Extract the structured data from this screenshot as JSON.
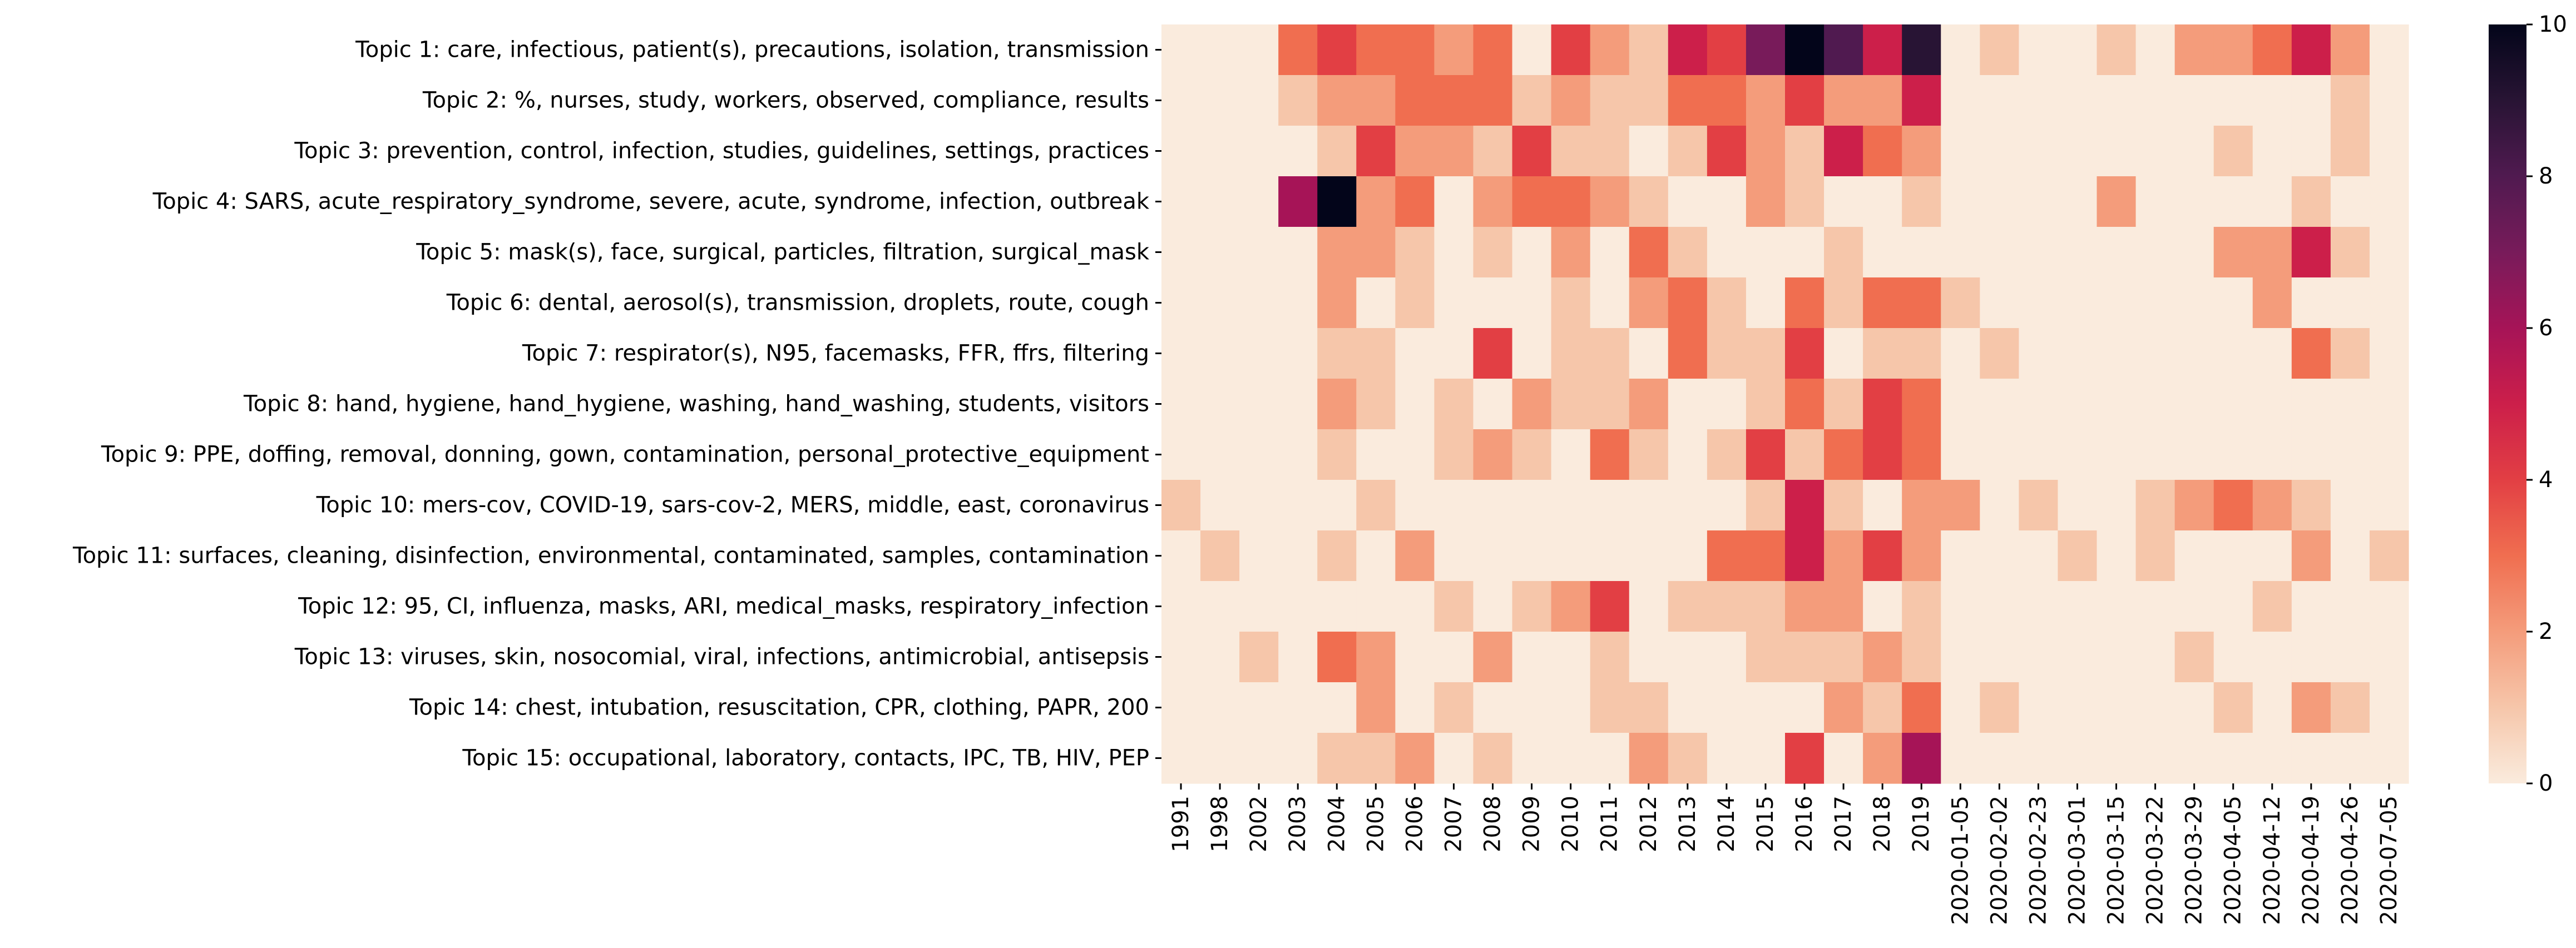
{
  "chart_data": {
    "type": "heatmap",
    "rows": [
      "Topic 1: care, infectious, patient(s), precautions, isolation, transmission",
      "Topic 2: %, nurses, study, workers, observed, compliance, results",
      "Topic 3: prevention, control, infection, studies, guidelines, settings, practices",
      "Topic 4: SARS, acute_respiratory_syndrome, severe, acute, syndrome, infection, outbreak",
      "Topic 5: mask(s), face, surgical, particles, filtration, surgical_mask",
      "Topic 6: dental, aerosol(s), transmission, droplets, route, cough",
      "Topic 7: respirator(s), N95, facemasks, FFR, ffrs, filtering",
      "Topic 8: hand, hygiene, hand_hygiene, washing, hand_washing, students, visitors",
      "Topic 9: PPE, doffing, removal, donning, gown, contamination, personal_protective_equipment",
      "Topic 10: mers-cov, COVID-19, sars-cov-2, MERS, middle, east, coronavirus",
      "Topic 11: surfaces, cleaning, disinfection, environmental, contaminated, samples, contamination",
      "Topic 12: 95, CI, influenza, masks, ARI, medical_masks, respiratory_infection",
      "Topic 13: viruses, skin, nosocomial, viral, infections, antimicrobial, antisepsis",
      "Topic 14: chest, intubation, resuscitation, CPR, clothing, PAPR, 200",
      "Topic 15: occupational, laboratory, contacts, IPC, TB, HIV, PEP"
    ],
    "columns": [
      "1991",
      "1998",
      "2002",
      "2003",
      "2004",
      "2005",
      "2006",
      "2007",
      "2008",
      "2009",
      "2010",
      "2011",
      "2012",
      "2013",
      "2014",
      "2015",
      "2016",
      "2017",
      "2018",
      "2019",
      "2020-01-05",
      "2020-02-02",
      "2020-02-23",
      "2020-03-01",
      "2020-03-15",
      "2020-03-22",
      "2020-03-29",
      "2020-04-05",
      "2020-04-12",
      "2020-04-19",
      "2020-04-26",
      "2020-07-05"
    ],
    "values": [
      [
        0,
        0,
        0,
        3,
        4,
        3,
        3,
        2,
        3,
        0,
        4,
        2,
        1,
        5,
        4,
        7,
        10,
        8,
        5,
        9,
        0,
        1,
        0,
        0,
        1,
        0,
        2,
        2,
        3,
        5,
        2,
        0
      ],
      [
        0,
        0,
        0,
        1,
        2,
        2,
        3,
        3,
        3,
        1,
        2,
        1,
        1,
        3,
        3,
        2,
        4,
        2,
        2,
        5,
        0,
        0,
        0,
        0,
        0,
        0,
        0,
        0,
        0,
        0,
        1,
        0
      ],
      [
        0,
        0,
        0,
        0,
        1,
        4,
        2,
        2,
        1,
        4,
        1,
        1,
        0,
        1,
        4,
        2,
        1,
        5,
        3,
        2,
        0,
        0,
        0,
        0,
        0,
        0,
        0,
        1,
        0,
        0,
        1,
        0
      ],
      [
        0,
        0,
        0,
        6,
        10,
        2,
        3,
        0,
        2,
        3,
        3,
        2,
        1,
        0,
        0,
        2,
        1,
        0,
        0,
        1,
        0,
        0,
        0,
        0,
        2,
        0,
        0,
        0,
        0,
        1,
        0,
        0
      ],
      [
        0,
        0,
        0,
        0,
        2,
        2,
        1,
        0,
        1,
        0,
        2,
        0,
        3,
        1,
        0,
        0,
        0,
        1,
        0,
        0,
        0,
        0,
        0,
        0,
        0,
        0,
        0,
        2,
        2,
        5,
        1,
        0
      ],
      [
        0,
        0,
        0,
        0,
        2,
        0,
        1,
        0,
        0,
        0,
        1,
        0,
        2,
        3,
        1,
        0,
        3,
        1,
        3,
        3,
        1,
        0,
        0,
        0,
        0,
        0,
        0,
        0,
        2,
        0,
        0,
        0
      ],
      [
        0,
        0,
        0,
        0,
        1,
        1,
        0,
        0,
        4,
        0,
        1,
        1,
        0,
        3,
        1,
        1,
        4,
        0,
        1,
        1,
        0,
        1,
        0,
        0,
        0,
        0,
        0,
        0,
        0,
        3,
        1,
        0
      ],
      [
        0,
        0,
        0,
        0,
        2,
        1,
        0,
        1,
        0,
        2,
        1,
        1,
        2,
        0,
        0,
        1,
        3,
        1,
        4,
        3,
        0,
        0,
        0,
        0,
        0,
        0,
        0,
        0,
        0,
        0,
        0,
        0
      ],
      [
        0,
        0,
        0,
        0,
        1,
        0,
        0,
        1,
        2,
        1,
        0,
        3,
        1,
        0,
        1,
        4,
        1,
        3,
        4,
        3,
        0,
        0,
        0,
        0,
        0,
        0,
        0,
        0,
        0,
        0,
        0,
        0
      ],
      [
        1,
        0,
        0,
        0,
        0,
        1,
        0,
        0,
        0,
        0,
        0,
        0,
        0,
        0,
        0,
        1,
        5,
        1,
        0,
        2,
        2,
        0,
        1,
        0,
        0,
        1,
        2,
        3,
        2,
        1,
        0,
        0
      ],
      [
        0,
        1,
        0,
        0,
        1,
        0,
        2,
        0,
        0,
        0,
        0,
        0,
        0,
        0,
        3,
        3,
        5,
        2,
        4,
        2,
        0,
        0,
        0,
        1,
        0,
        1,
        0,
        0,
        0,
        2,
        0,
        1
      ],
      [
        0,
        0,
        0,
        0,
        0,
        0,
        0,
        1,
        0,
        1,
        2,
        4,
        0,
        1,
        1,
        1,
        2,
        2,
        0,
        1,
        0,
        0,
        0,
        0,
        0,
        0,
        0,
        0,
        1,
        0,
        0,
        0
      ],
      [
        0,
        0,
        1,
        0,
        3,
        2,
        0,
        0,
        2,
        0,
        0,
        1,
        0,
        0,
        0,
        1,
        1,
        1,
        2,
        1,
        0,
        0,
        0,
        0,
        0,
        0,
        1,
        0,
        0,
        0,
        0,
        0
      ],
      [
        0,
        0,
        0,
        0,
        0,
        2,
        0,
        1,
        0,
        0,
        0,
        1,
        1,
        0,
        0,
        0,
        0,
        2,
        1,
        3,
        0,
        1,
        0,
        0,
        0,
        0,
        0,
        1,
        0,
        2,
        1,
        0
      ],
      [
        0,
        0,
        0,
        0,
        1,
        1,
        2,
        0,
        1,
        0,
        0,
        0,
        2,
        1,
        0,
        0,
        4,
        0,
        2,
        6,
        0,
        0,
        0,
        0,
        0,
        0,
        0,
        0,
        0,
        0,
        0,
        0
      ]
    ],
    "colorbar": {
      "min": 0,
      "max": 10,
      "ticks": [
        0,
        2,
        4,
        6,
        8,
        10
      ]
    },
    "colormap": "rocket_r",
    "title": "",
    "xlabel": "",
    "ylabel": ""
  }
}
